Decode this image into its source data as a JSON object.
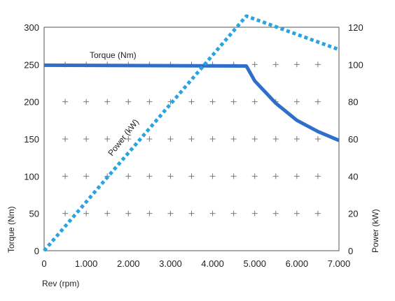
{
  "chart_data": {
    "type": "line",
    "x": [
      0,
      1000,
      2000,
      3000,
      4000,
      4800,
      5000,
      5500,
      6000,
      6500,
      7000
    ],
    "xticks": [
      "0",
      "1.000",
      "2.000",
      "3.000",
      "4.000",
      "5.000",
      "6.000",
      "7.000"
    ],
    "xtick_values": [
      0,
      1000,
      2000,
      3000,
      4000,
      5000,
      6000,
      7000
    ],
    "xlabel": "Rev (rpm)",
    "xlim": [
      0,
      7000
    ],
    "y_left": {
      "label": "Torque (Nm)",
      "ticks": [
        "0",
        "50",
        "100",
        "150",
        "200",
        "250",
        "300"
      ],
      "tick_values": [
        0,
        50,
        100,
        150,
        200,
        250,
        300
      ],
      "lim": [
        0,
        300
      ]
    },
    "y_right": {
      "label": "Power (kW)",
      "ticks": [
        "0",
        "20",
        "40",
        "60",
        "80",
        "100",
        "120"
      ],
      "tick_values": [
        0,
        20,
        40,
        60,
        80,
        100,
        120
      ],
      "lim": [
        0,
        120
      ]
    },
    "grid": "plus-markers",
    "series": [
      {
        "name": "Torque (Nm)",
        "axis": "left",
        "style": "solid",
        "color": "#2e6fc9",
        "points": [
          [
            0,
            249
          ],
          [
            4800,
            248
          ],
          [
            5000,
            228
          ],
          [
            5500,
            198
          ],
          [
            6000,
            175
          ],
          [
            6500,
            160
          ],
          [
            7000,
            148
          ]
        ]
      },
      {
        "name": "Power (kW)",
        "axis": "right",
        "style": "dotted",
        "color": "#2aa3e3",
        "points": [
          [
            0,
            0
          ],
          [
            4800,
            126
          ],
          [
            7000,
            108
          ]
        ]
      }
    ]
  }
}
